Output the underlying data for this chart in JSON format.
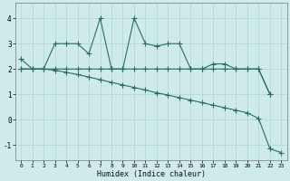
{
  "xlabel": "Humidex (Indice chaleur)",
  "line_color": "#2a6e62",
  "bg_color": "#ceeaea",
  "grid_color": "#b0d4d4",
  "xlim": [
    -0.5,
    23.5
  ],
  "ylim": [
    -1.6,
    4.6
  ],
  "xticks": [
    0,
    1,
    2,
    3,
    4,
    5,
    6,
    7,
    8,
    9,
    10,
    11,
    12,
    13,
    14,
    15,
    16,
    17,
    18,
    19,
    20,
    21,
    22,
    23
  ],
  "yticks": [
    -1,
    0,
    1,
    2,
    3,
    4
  ],
  "line1_x": [
    0,
    1,
    2,
    3,
    4,
    5,
    6,
    7,
    8,
    9,
    10,
    11,
    12,
    13,
    14,
    15,
    16,
    17,
    18,
    19,
    20,
    21,
    22
  ],
  "line1_y": [
    2.4,
    2.0,
    2.0,
    3.0,
    3.0,
    3.0,
    2.6,
    4.0,
    2.0,
    2.0,
    4.0,
    3.0,
    2.9,
    3.0,
    3.0,
    2.0,
    2.0,
    2.2,
    2.2,
    2.0,
    2.0,
    2.0,
    1.0
  ],
  "line2_x": [
    0,
    1,
    2,
    3,
    4,
    5,
    6,
    7,
    8,
    9,
    10,
    11,
    12,
    13,
    14,
    15,
    16,
    17,
    18,
    19,
    20,
    21,
    22
  ],
  "line2_y": [
    2.0,
    2.0,
    2.0,
    2.0,
    2.0,
    2.0,
    2.0,
    2.0,
    2.0,
    2.0,
    2.0,
    2.0,
    2.0,
    2.0,
    2.0,
    2.0,
    2.0,
    2.0,
    2.0,
    2.0,
    2.0,
    2.0,
    1.0
  ],
  "line3_x": [
    0,
    1,
    2,
    3,
    4,
    5,
    6,
    7,
    8,
    9,
    10,
    11,
    12,
    13,
    14,
    15,
    16,
    17,
    18,
    19,
    20,
    21,
    22,
    23
  ],
  "line3_y": [
    2.0,
    2.0,
    2.0,
    1.95,
    1.87,
    1.78,
    1.68,
    1.58,
    1.47,
    1.37,
    1.27,
    1.17,
    1.06,
    0.97,
    0.87,
    0.77,
    0.67,
    0.57,
    0.47,
    0.37,
    0.27,
    0.05,
    -1.15,
    -1.3
  ]
}
